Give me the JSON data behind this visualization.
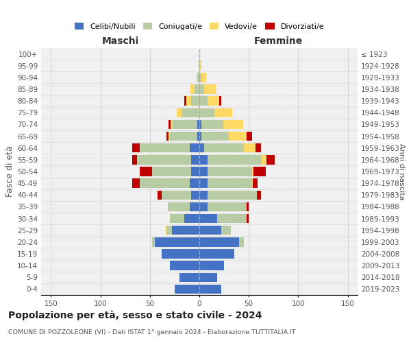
{
  "age_groups": [
    "0-4",
    "5-9",
    "10-14",
    "15-19",
    "20-24",
    "25-29",
    "30-34",
    "35-39",
    "40-44",
    "45-49",
    "50-54",
    "55-59",
    "60-64",
    "65-69",
    "70-74",
    "75-79",
    "80-84",
    "85-89",
    "90-94",
    "95-99",
    "100+"
  ],
  "birth_years": [
    "2019-2023",
    "2014-2018",
    "2009-2013",
    "2004-2008",
    "1999-2003",
    "1994-1998",
    "1989-1993",
    "1984-1988",
    "1979-1983",
    "1974-1978",
    "1969-1973",
    "1964-1968",
    "1959-1963",
    "1954-1958",
    "1949-1953",
    "1944-1948",
    "1939-1943",
    "1934-1938",
    "1929-1933",
    "1924-1928",
    "≤ 1923"
  ],
  "males": {
    "celibi": [
      25,
      20,
      30,
      38,
      45,
      28,
      15,
      10,
      8,
      10,
      8,
      8,
      10,
      2,
      2,
      0,
      0,
      0,
      0,
      0,
      0
    ],
    "coniugati": [
      0,
      0,
      0,
      0,
      3,
      5,
      15,
      22,
      30,
      50,
      40,
      55,
      50,
      28,
      25,
      18,
      8,
      5,
      2,
      1,
      0
    ],
    "vedovi": [
      0,
      0,
      0,
      0,
      0,
      1,
      0,
      0,
      0,
      0,
      0,
      0,
      0,
      1,
      2,
      5,
      5,
      4,
      1,
      0,
      0
    ],
    "divorziati": [
      0,
      0,
      0,
      0,
      0,
      0,
      0,
      0,
      4,
      8,
      12,
      5,
      8,
      2,
      2,
      0,
      2,
      0,
      0,
      0,
      0
    ]
  },
  "females": {
    "nubili": [
      22,
      18,
      25,
      35,
      40,
      22,
      18,
      8,
      8,
      8,
      8,
      8,
      5,
      2,
      2,
      0,
      0,
      0,
      0,
      0,
      0
    ],
    "coniugate": [
      0,
      0,
      0,
      0,
      5,
      10,
      30,
      40,
      50,
      45,
      45,
      55,
      40,
      28,
      22,
      15,
      8,
      5,
      2,
      0,
      0
    ],
    "vedove": [
      0,
      0,
      0,
      0,
      0,
      0,
      0,
      0,
      0,
      1,
      2,
      5,
      12,
      18,
      20,
      18,
      12,
      12,
      5,
      2,
      0
    ],
    "divorziate": [
      0,
      0,
      0,
      0,
      0,
      0,
      2,
      2,
      4,
      5,
      12,
      8,
      5,
      5,
      0,
      0,
      2,
      0,
      0,
      0,
      0
    ]
  },
  "colors": {
    "celibi": "#4472c4",
    "coniugati": "#b8cca4",
    "vedovi": "#ffd966",
    "divorziati": "#c00000"
  },
  "legend_labels": [
    "Celibi/Nubili",
    "Coniugati/e",
    "Vedovi/e",
    "Divorziati/e"
  ],
  "title": "Popolazione per età, sesso e stato civile - 2024",
  "subtitle": "COMUNE DI POZZOLEONE (VI) - Dati ISTAT 1° gennaio 2024 - Elaborazione TUTTITALIA.IT",
  "ylabel_left": "Fasce di età",
  "ylabel_right": "Anni di nascita",
  "header_maschi": "Maschi",
  "header_femmine": "Femmine",
  "xlim": 160,
  "xticks": [
    -150,
    -100,
    -50,
    0,
    50,
    100,
    150
  ],
  "xtick_labels": [
    "150",
    "100",
    "50",
    "0",
    "50",
    "100",
    "150"
  ],
  "bg_color": "#ffffff",
  "plot_bg": "#f0f0f0",
  "grid_color": "#cccccc"
}
